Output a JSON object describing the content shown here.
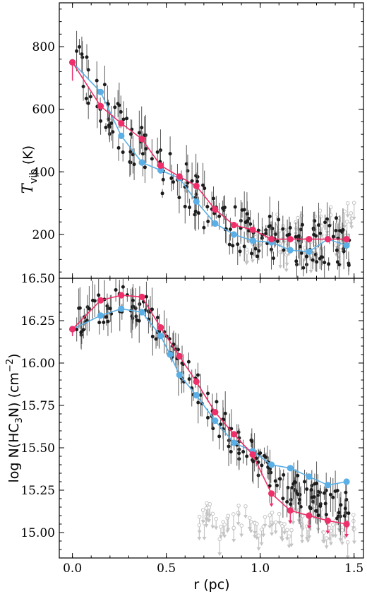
{
  "chart_data": [
    {
      "type": "scatter",
      "panel": "top",
      "ylabel": "T_vib (K)",
      "ylabel_main": "T",
      "ylabel_sub": "vib",
      "ylabel_unit": "(K)",
      "xlim": [
        -0.07,
        1.55
      ],
      "ylim": [
        60,
        940
      ],
      "yticks": [
        200,
        400,
        600,
        800
      ],
      "colors": {
        "blue": "#5aafe6",
        "red": "#ee2f6a",
        "points": "#1c1c1c",
        "upper_limits": "#c4c4c4"
      },
      "series": [
        {
          "color": "blue",
          "x": [
            0.0,
            0.15,
            0.26,
            0.37,
            0.47,
            0.57,
            0.66,
            0.76,
            0.86,
            0.96,
            1.06,
            1.16,
            1.26,
            1.36,
            1.46
          ],
          "y": [
            750,
            655,
            515,
            430,
            405,
            380,
            305,
            235,
            200,
            180,
            175,
            150,
            145,
            185,
            165
          ]
        },
        {
          "color": "red",
          "x": [
            0.0,
            0.15,
            0.26,
            0.37,
            0.47,
            0.57,
            0.66,
            0.76,
            0.86,
            0.96,
            1.06,
            1.16,
            1.26,
            1.36,
            1.46
          ],
          "y": [
            750,
            610,
            555,
            505,
            420,
            385,
            355,
            280,
            230,
            215,
            185,
            185,
            185,
            185,
            185
          ]
        }
      ],
      "upper_limit_points": [
        {
          "x": 1.0,
          "y": 220
        },
        {
          "x": 1.05,
          "y": 190
        },
        {
          "x": 1.1,
          "y": 240
        },
        {
          "x": 1.15,
          "y": 200
        },
        {
          "x": 1.2,
          "y": 230
        },
        {
          "x": 1.25,
          "y": 185
        },
        {
          "x": 1.3,
          "y": 250
        },
        {
          "x": 1.35,
          "y": 220
        },
        {
          "x": 1.4,
          "y": 270
        },
        {
          "x": 1.45,
          "y": 240
        },
        {
          "x": 1.48,
          "y": 280
        },
        {
          "x": 0.95,
          "y": 170
        },
        {
          "x": 1.12,
          "y": 160
        },
        {
          "x": 1.28,
          "y": 165
        },
        {
          "x": 1.42,
          "y": 175
        }
      ]
    },
    {
      "type": "scatter",
      "panel": "bottom",
      "xlabel": "r (pc)",
      "ylabel": "log N(HC3N) (cm^-2)",
      "ylabel_a": "log N(HC",
      "ylabel_b": "3",
      "ylabel_c": "N) (cm",
      "ylabel_d": "−2",
      "ylabel_e": ")",
      "xlim": [
        -0.07,
        1.55
      ],
      "ylim": [
        14.85,
        16.5
      ],
      "xticks": [
        0.0,
        0.5,
        1.0,
        1.5
      ],
      "xticklabels": [
        "0.0",
        "0.5",
        "1.0",
        "1.5"
      ],
      "yticks": [
        15.0,
        15.25,
        15.5,
        15.75,
        16.0,
        16.25,
        16.5
      ],
      "yticklabels": [
        "15.00",
        "15.25",
        "15.50",
        "15.75",
        "16.00",
        "16.25",
        "16.50"
      ],
      "series": [
        {
          "color": "blue",
          "x": [
            0.0,
            0.15,
            0.26,
            0.37,
            0.47,
            0.52,
            0.57,
            0.66,
            0.76,
            0.86,
            0.96,
            1.06,
            1.16,
            1.26,
            1.36,
            1.46
          ],
          "y": [
            16.2,
            16.28,
            16.32,
            16.3,
            16.16,
            16.05,
            15.93,
            15.81,
            15.66,
            15.53,
            15.48,
            15.4,
            15.38,
            15.33,
            15.28,
            15.3
          ]
        },
        {
          "color": "red",
          "x": [
            0.0,
            0.15,
            0.26,
            0.37,
            0.47,
            0.57,
            0.66,
            0.76,
            0.86,
            0.96,
            1.06,
            1.16,
            1.26,
            1.36,
            1.46
          ],
          "y": [
            16.2,
            16.37,
            16.4,
            16.39,
            16.21,
            16.04,
            15.89,
            15.71,
            15.58,
            15.46,
            15.23,
            15.13,
            15.1,
            15.07,
            15.05
          ]
        }
      ],
      "upper_limit_points": [
        {
          "x": 0.7,
          "y": 15.1
        },
        {
          "x": 0.72,
          "y": 15.12
        },
        {
          "x": 0.75,
          "y": 15.12
        },
        {
          "x": 0.8,
          "y": 15.02
        },
        {
          "x": 0.85,
          "y": 15.05
        },
        {
          "x": 0.9,
          "y": 15.1
        },
        {
          "x": 0.95,
          "y": 15.08
        },
        {
          "x": 1.0,
          "y": 15.04
        },
        {
          "x": 1.05,
          "y": 15.1
        },
        {
          "x": 1.1,
          "y": 15.06
        },
        {
          "x": 1.15,
          "y": 15.0
        },
        {
          "x": 1.2,
          "y": 15.08
        },
        {
          "x": 1.25,
          "y": 15.04
        },
        {
          "x": 1.3,
          "y": 15.1
        },
        {
          "x": 1.35,
          "y": 15.02
        },
        {
          "x": 1.4,
          "y": 15.06
        },
        {
          "x": 1.45,
          "y": 15.0
        },
        {
          "x": 1.48,
          "y": 15.05
        }
      ]
    }
  ]
}
